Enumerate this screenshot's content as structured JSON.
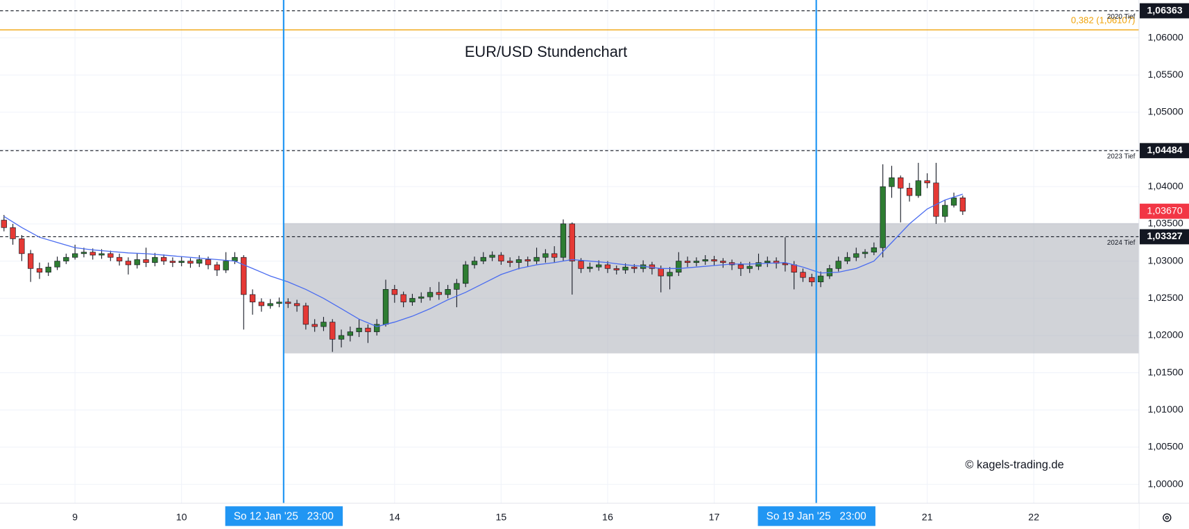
{
  "chart_data": {
    "type": "candlestick",
    "title": "EUR/USD Stundenchart",
    "watermark": "© kagels-trading.de",
    "up_color": "#2e7d32",
    "down_color": "#e53935",
    "x": [
      -16,
      -14,
      -12,
      -10,
      -8,
      -6,
      -4,
      -2,
      0,
      2,
      4,
      6,
      8,
      10,
      12,
      14,
      16,
      18,
      20,
      22,
      24,
      26,
      28,
      30,
      32,
      34,
      36,
      38,
      40,
      42,
      44,
      46,
      48,
      50,
      52,
      54,
      56,
      58,
      60,
      62,
      64,
      66,
      68,
      70,
      72,
      74,
      76,
      78,
      80,
      82,
      84,
      86,
      88,
      90,
      92,
      94,
      96,
      98,
      100,
      102,
      104,
      106,
      108,
      110,
      112,
      114,
      116,
      118,
      120,
      122,
      124,
      126,
      128,
      130,
      132,
      134,
      136,
      138,
      140,
      142,
      144,
      146,
      148,
      150,
      152,
      154,
      156,
      158,
      160,
      162,
      164,
      166,
      168,
      170,
      172,
      174,
      176,
      178,
      180,
      182,
      184,
      186,
      188,
      190,
      192,
      194,
      196,
      198,
      200
    ],
    "open": [
      1.0355,
      1.0345,
      1.033,
      1.031,
      1.029,
      1.0285,
      1.0292,
      1.03,
      1.0305,
      1.031,
      1.0312,
      1.0308,
      1.031,
      1.0305,
      1.03,
      1.0295,
      1.0302,
      1.0298,
      1.0305,
      1.03,
      1.0298,
      1.03,
      1.0297,
      1.0302,
      1.0295,
      1.0288,
      1.03,
      1.0305,
      1.0255,
      1.0245,
      1.024,
      1.0243,
      1.0245,
      1.0243,
      1.024,
      1.0215,
      1.0212,
      1.0218,
      1.0195,
      1.02,
      1.0205,
      1.021,
      1.0205,
      1.0215,
      1.0262,
      1.0255,
      1.0245,
      1.025,
      1.0252,
      1.0258,
      1.0255,
      1.0262,
      1.027,
      1.0295,
      1.03,
      1.0305,
      1.0308,
      1.03,
      1.0298,
      1.0302,
      1.03,
      1.0305,
      1.031,
      1.0305,
      1.035,
      1.03,
      1.029,
      1.0292,
      1.0295,
      1.029,
      1.0288,
      1.0292,
      1.029,
      1.0295,
      1.029,
      1.028,
      1.0285,
      1.03,
      1.0298,
      1.03,
      1.0302,
      1.03,
      1.0298,
      1.0295,
      1.029,
      1.0293,
      1.0298,
      1.03,
      1.0297,
      1.0295,
      1.0285,
      1.0278,
      1.0272,
      1.028,
      1.029,
      1.03,
      1.0305,
      1.031,
      1.0312,
      1.0318,
      1.04,
      1.0412,
      1.0398,
      1.0388,
      1.0408,
      1.0405,
      1.036,
      1.0375,
      1.0385
    ],
    "high": [
      1.0362,
      1.035,
      1.0335,
      1.0315,
      1.0298,
      1.0298,
      1.0306,
      1.031,
      1.0322,
      1.0318,
      1.0317,
      1.0316,
      1.0314,
      1.031,
      1.0305,
      1.031,
      1.0318,
      1.0311,
      1.0309,
      1.0305,
      1.0306,
      1.0304,
      1.0308,
      1.0306,
      1.0299,
      1.0312,
      1.0312,
      1.0308,
      1.0262,
      1.025,
      1.0249,
      1.0251,
      1.025,
      1.0248,
      1.0244,
      1.0222,
      1.0225,
      1.0222,
      1.0208,
      1.0212,
      1.0222,
      1.0215,
      1.0222,
      1.0275,
      1.0268,
      1.0259,
      1.0256,
      1.0258,
      1.0265,
      1.0272,
      1.0268,
      1.0276,
      1.03,
      1.0306,
      1.0312,
      1.0313,
      1.0312,
      1.0305,
      1.0307,
      1.0306,
      1.0318,
      1.0316,
      1.032,
      1.0356,
      1.0352,
      1.0304,
      1.0298,
      1.0301,
      1.03,
      1.0294,
      1.0297,
      1.0296,
      1.0301,
      1.0299,
      1.0294,
      1.0292,
      1.0312,
      1.0306,
      1.0305,
      1.0308,
      1.0307,
      1.0304,
      1.0302,
      1.0299,
      1.0299,
      1.031,
      1.0306,
      1.0305,
      1.0332,
      1.03,
      1.029,
      1.0283,
      1.0286,
      1.0295,
      1.0306,
      1.0312,
      1.0318,
      1.0316,
      1.0325,
      1.043,
      1.0428,
      1.0415,
      1.0405,
      1.0432,
      1.0418,
      1.0432,
      1.0382,
      1.0392,
      1.0388
    ],
    "low": [
      1.034,
      1.0322,
      1.03,
      1.0272,
      1.0276,
      1.028,
      1.0288,
      1.0296,
      1.0302,
      1.0305,
      1.0302,
      1.0303,
      1.03,
      1.0294,
      1.0282,
      1.029,
      1.0292,
      1.0293,
      1.0295,
      1.0292,
      1.0293,
      1.0291,
      1.0292,
      1.0289,
      1.028,
      1.0284,
      1.0296,
      1.0208,
      1.0228,
      1.0232,
      1.0236,
      1.0238,
      1.0237,
      1.0232,
      1.0208,
      1.0205,
      1.0206,
      1.0178,
      1.0184,
      1.0192,
      1.0198,
      1.019,
      1.02,
      1.0212,
      1.0244,
      1.0238,
      1.024,
      1.0244,
      1.0247,
      1.0248,
      1.025,
      1.0238,
      1.0265,
      1.029,
      1.0296,
      1.03,
      1.0295,
      1.0292,
      1.0289,
      1.0293,
      1.0296,
      1.0298,
      1.0298,
      1.03,
      1.0255,
      1.0284,
      1.0285,
      1.0287,
      1.0284,
      1.0282,
      1.0283,
      1.0284,
      1.0285,
      1.0282,
      1.0258,
      1.0262,
      1.028,
      1.0292,
      1.0293,
      1.0295,
      1.0294,
      1.0291,
      1.0288,
      1.028,
      1.0284,
      1.0288,
      1.0292,
      1.029,
      1.0286,
      1.0262,
      1.0272,
      1.0266,
      1.0265,
      1.0276,
      1.0286,
      1.0296,
      1.03,
      1.0304,
      1.0308,
      1.0305,
      1.0385,
      1.0352,
      1.038,
      1.0385,
      1.0398,
      1.035,
      1.0352,
      1.0372,
      1.0362
    ],
    "close": [
      1.0345,
      1.033,
      1.031,
      1.029,
      1.0285,
      1.0292,
      1.03,
      1.0305,
      1.031,
      1.0312,
      1.0308,
      1.031,
      1.0305,
      1.03,
      1.0295,
      1.0302,
      1.0298,
      1.0305,
      1.03,
      1.0298,
      1.03,
      1.0297,
      1.0302,
      1.0295,
      1.0288,
      1.03,
      1.0305,
      1.0255,
      1.0245,
      1.024,
      1.0243,
      1.0245,
      1.0243,
      1.024,
      1.0215,
      1.0212,
      1.0218,
      1.0195,
      1.02,
      1.0205,
      1.021,
      1.0205,
      1.0215,
      1.0262,
      1.0255,
      1.0245,
      1.025,
      1.0252,
      1.0258,
      1.0255,
      1.0262,
      1.027,
      1.0295,
      1.03,
      1.0305,
      1.0308,
      1.03,
      1.0298,
      1.0302,
      1.03,
      1.0305,
      1.031,
      1.0305,
      1.035,
      1.03,
      1.029,
      1.0292,
      1.0295,
      1.029,
      1.0288,
      1.0292,
      1.029,
      1.0295,
      1.029,
      1.028,
      1.0285,
      1.03,
      1.0298,
      1.03,
      1.0302,
      1.03,
      1.0298,
      1.0295,
      1.029,
      1.0293,
      1.0298,
      1.03,
      1.0297,
      1.0295,
      1.0285,
      1.0278,
      1.0272,
      1.028,
      1.029,
      1.03,
      1.0305,
      1.031,
      1.0312,
      1.0318,
      1.04,
      1.0412,
      1.0398,
      1.0388,
      1.0408,
      1.0405,
      1.036,
      1.0375,
      1.0385,
      1.0367
    ],
    "ma": {
      "color": "#4a6cf0",
      "x": [
        -16,
        -12,
        -8,
        -4,
        0,
        4,
        8,
        12,
        16,
        20,
        24,
        28,
        32,
        36,
        40,
        44,
        48,
        52,
        56,
        60,
        64,
        68,
        72,
        76,
        80,
        84,
        88,
        92,
        96,
        100,
        104,
        108,
        112,
        116,
        120,
        124,
        128,
        132,
        136,
        140,
        144,
        148,
        152,
        156,
        160,
        164,
        168,
        172,
        176,
        180,
        184,
        188,
        192,
        196,
        200
      ],
      "values": [
        1.036,
        1.0345,
        1.0332,
        1.0325,
        1.0318,
        1.0315,
        1.0313,
        1.0311,
        1.031,
        1.0308,
        1.0306,
        1.0304,
        1.0302,
        1.03,
        1.029,
        1.028,
        1.0272,
        1.0262,
        1.025,
        1.0236,
        1.0222,
        1.0212,
        1.0218,
        1.0226,
        1.0236,
        1.0248,
        1.0258,
        1.027,
        1.0282,
        1.029,
        1.0295,
        1.0298,
        1.0302,
        1.03,
        1.0298,
        1.0295,
        1.0293,
        1.029,
        1.029,
        1.0292,
        1.0294,
        1.0296,
        1.0296,
        1.0297,
        1.0298,
        1.0292,
        1.0284,
        1.0285,
        1.029,
        1.03,
        1.0325,
        1.035,
        1.037,
        1.0382,
        1.039
      ]
    },
    "xlim": [
      -16.9,
      239.7
    ],
    "xticks": [
      {
        "value": 0,
        "label": "9"
      },
      {
        "value": 24,
        "label": "10"
      },
      {
        "value": 72,
        "label": "14"
      },
      {
        "value": 96,
        "label": "15"
      },
      {
        "value": 120,
        "label": "16"
      },
      {
        "value": 144,
        "label": "17"
      },
      {
        "value": 192,
        "label": "21"
      },
      {
        "value": 216,
        "label": "22"
      }
    ],
    "ylim": [
      0.99746,
      1.06508
    ],
    "yticks": [
      {
        "value": 1.0,
        "label": "1,00000"
      },
      {
        "value": 1.005,
        "label": "1,00500"
      },
      {
        "value": 1.01,
        "label": "1,01000"
      },
      {
        "value": 1.015,
        "label": "1,01500"
      },
      {
        "value": 1.02,
        "label": "1,02000"
      },
      {
        "value": 1.025,
        "label": "1,02500"
      },
      {
        "value": 1.03,
        "label": "1,03000"
      },
      {
        "value": 1.035,
        "label": "1,03500"
      },
      {
        "value": 1.04,
        "label": "1,04000"
      },
      {
        "value": 1.045,
        "label": "1,04500"
      },
      {
        "value": 1.05,
        "label": "1,05000"
      },
      {
        "value": 1.055,
        "label": "1,05500"
      },
      {
        "value": 1.06,
        "label": "1,06000"
      }
    ],
    "grid": true,
    "levels": [
      {
        "value": 1.06363,
        "label": "2020 Tief",
        "price_label": "1,06363"
      },
      {
        "value": 1.04484,
        "label": "2023 Tief",
        "price_label": "1,04484"
      },
      {
        "value": 1.03327,
        "label": "2024 Tief",
        "price_label": "1,03327"
      }
    ],
    "fib": {
      "value": 1.06107,
      "label": "0,382 (1,06107)",
      "color": "#f0a30a"
    },
    "zone": {
      "x_start": 47,
      "low": 1.0176,
      "high": 1.0351,
      "color": "#b2b5be"
    },
    "markers": [
      {
        "x": 47,
        "label": "So 12 Jan '25   23:00"
      },
      {
        "x": 167,
        "label": "So 19 Jan '25   23:00"
      }
    ],
    "marker_color": "#2196f3",
    "last_price": {
      "value": 1.0367,
      "label": "1,03670",
      "color": "#f23645"
    }
  }
}
